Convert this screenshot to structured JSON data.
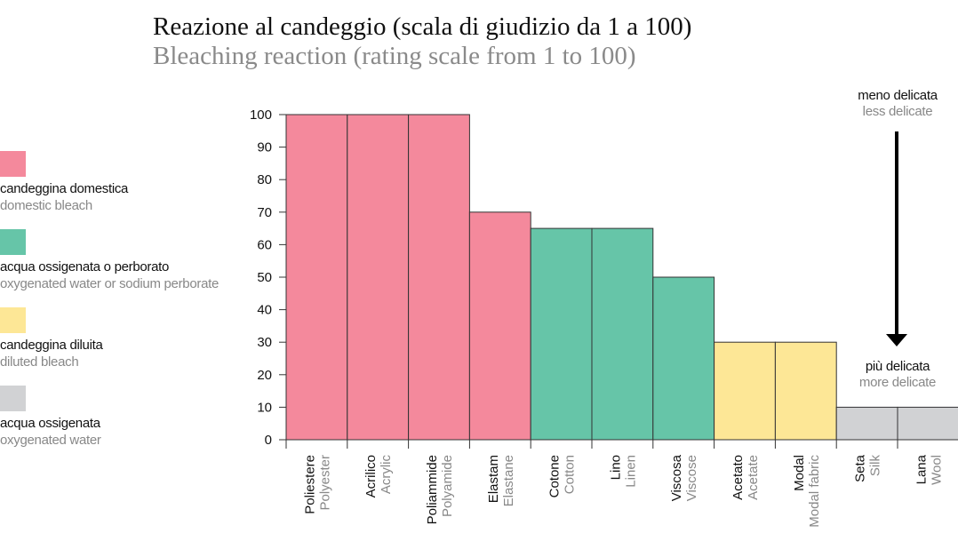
{
  "title": {
    "italian": "Reazione al candeggio (scala di giudizio da 1 a 100)",
    "english": "Bleaching reaction (rating scale from 1 to 100)"
  },
  "legend": [
    {
      "it": "candeggina domestica",
      "en": "domestic bleach",
      "color": "#f4899c"
    },
    {
      "it": "acqua ossigenata o perborato",
      "en": "oxygenated water or sodium perborate",
      "color": "#66c5a8"
    },
    {
      "it": "candeggina diluita",
      "en": "diluted bleach",
      "color": "#fde796"
    },
    {
      "it": "acqua ossigenata",
      "en": "oxygenated water",
      "color": "#d1d2d4"
    }
  ],
  "annotations": {
    "top": {
      "it": "meno delicata",
      "en": "less delicate"
    },
    "bottom": {
      "it": "più delicata",
      "en": "more delicate"
    }
  },
  "chart_data": {
    "type": "bar",
    "categories": [
      "Poliestere",
      "Acrilico",
      "Poliammide",
      "Elastam",
      "Cotone",
      "Lino",
      "Viscosa",
      "Acetato",
      "Modal",
      "Seta",
      "Lana"
    ],
    "categories_en": [
      "Polyester",
      "Acrylic",
      "Polyamide",
      "Elastane",
      "Cotton",
      "Linen",
      "Viscose",
      "Acetate",
      "Modal fabric",
      "Silk",
      "Wool"
    ],
    "values": [
      100,
      100,
      100,
      70,
      65,
      65,
      50,
      30,
      30,
      10,
      10
    ],
    "legend_index": [
      0,
      0,
      0,
      0,
      1,
      1,
      1,
      2,
      2,
      3,
      3
    ],
    "ylim": [
      0,
      100
    ],
    "yticks": [
      0,
      10,
      20,
      30,
      40,
      50,
      60,
      70,
      80,
      90,
      100
    ],
    "grid": false
  }
}
